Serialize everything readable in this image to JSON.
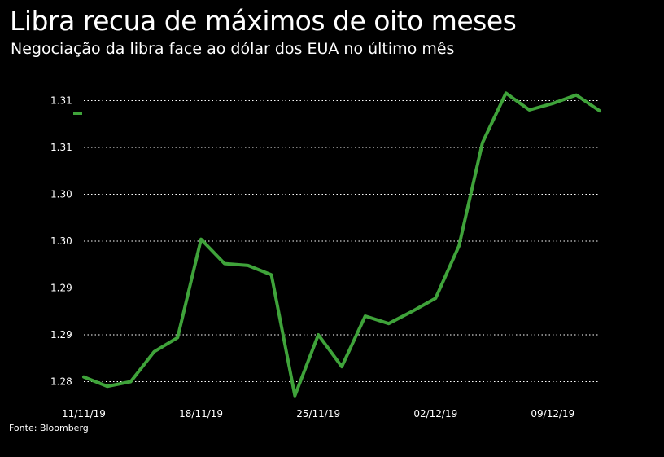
{
  "colors": {
    "background": "#000000",
    "line": "#3fa33a",
    "grid": "#ffffff",
    "text": "#ffffff"
  },
  "chart_data": {
    "type": "line",
    "title": "Libra recua de máximos de oito meses",
    "subtitle": "Negociação da libra face ao dólar dos EUA no último mês",
    "source": "Fonte: Bloomberg",
    "grid": "horizontal dotted",
    "y_ticks": [
      {
        "value": 1.28,
        "label": "1.28"
      },
      {
        "value": 1.285,
        "label": "1.29"
      },
      {
        "value": 1.29,
        "label": "1.29"
      },
      {
        "value": 1.295,
        "label": "1.30"
      },
      {
        "value": 1.3,
        "label": "1.30"
      },
      {
        "value": 1.305,
        "label": "1.31"
      },
      {
        "value": 1.31,
        "label": "1.31"
      }
    ],
    "ylim": [
      1.279,
      1.311
    ],
    "x_ticks": [
      {
        "x": 0,
        "label": "11/11/19"
      },
      {
        "x": 5,
        "label": "18/11/19"
      },
      {
        "x": 10,
        "label": "25/11/19"
      },
      {
        "x": 15,
        "label": "02/12/19"
      },
      {
        "x": 20,
        "label": "09/12/19"
      }
    ],
    "xlim": [
      0,
      21
    ],
    "series": [
      {
        "values": [
          1.2805,
          1.2795,
          1.28,
          1.2832,
          1.2847,
          1.2952,
          1.2926,
          1.2924,
          1.2914,
          1.2785,
          1.285,
          1.2816,
          1.287,
          1.2862,
          1.2875,
          1.2889,
          1.2945,
          1.3055,
          1.3108,
          1.309,
          1.3097,
          1.3106,
          1.3089
        ]
      }
    ],
    "x": [
      0,
      1,
      2,
      3,
      4,
      5,
      6,
      7,
      8,
      9,
      10,
      11,
      12,
      13,
      14,
      15,
      16,
      17,
      18,
      19,
      20,
      21,
      22
    ]
  }
}
